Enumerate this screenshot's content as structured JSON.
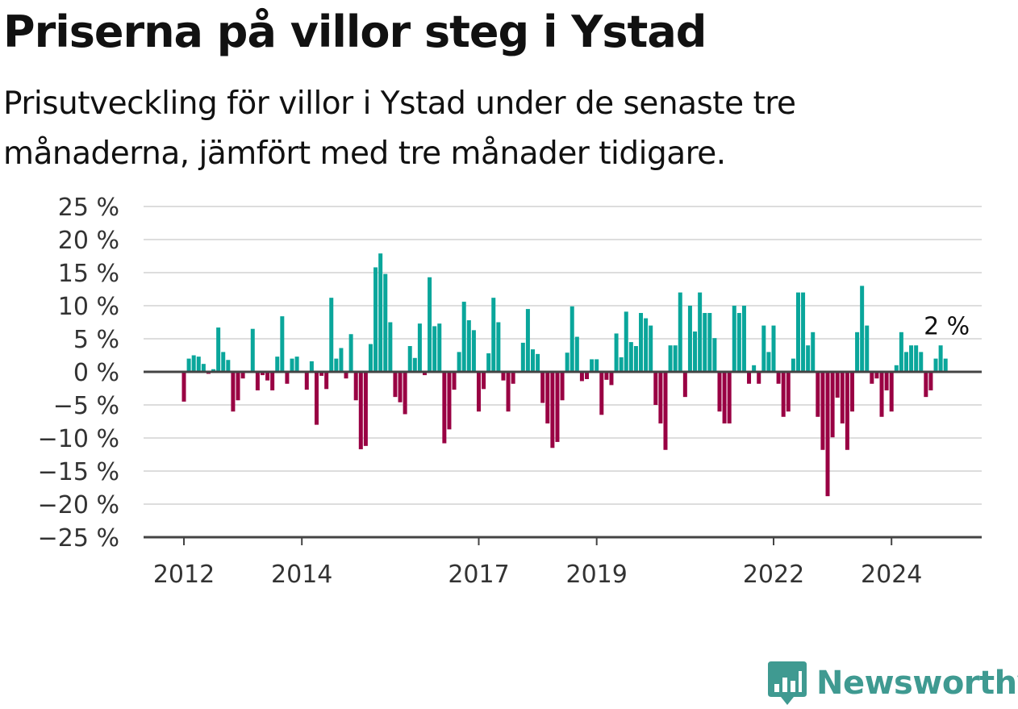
{
  "title": "Priserna på villor steg i Ystad",
  "subtitle": "Prisutveckling för villor i Ystad under de senaste tre månaderna, jämfört med tre månader tidigare.",
  "brand": {
    "name": "Newsworthy",
    "color": "#3f9a91",
    "icon": "bar-chart-badge-icon"
  },
  "colors": {
    "positive": "#0aa69b",
    "negative": "#990043",
    "zero_line": "#444444",
    "grid": "#dddddd"
  },
  "chart_data": {
    "type": "bar",
    "title": "Priserna på villor steg i Ystad",
    "xlabel": "",
    "ylabel": "",
    "ylim": [
      -25,
      25
    ],
    "yticks": [
      25,
      20,
      15,
      10,
      5,
      0,
      -5,
      -10,
      -15,
      -20,
      -25
    ],
    "ytick_labels": [
      "25 %",
      "20 %",
      "15 %",
      "10 %",
      "5 %",
      "0 %",
      "−5 %",
      "−10 %",
      "−15 %",
      "−20 %",
      "−25 %"
    ],
    "xticks": [
      2012,
      2014,
      2017,
      2019,
      2022,
      2024
    ],
    "xtick_labels": [
      "2012",
      "2014",
      "2017",
      "2019",
      "2022",
      "2024"
    ],
    "x_start": 2012,
    "months_per_bar": 1,
    "values": [
      -4.5,
      2,
      2.5,
      2.3,
      1.2,
      -0.3,
      0.4,
      6.7,
      3,
      1.8,
      -6,
      -4.3,
      -1,
      0,
      6.5,
      -2.8,
      -0.5,
      -1.3,
      -2.8,
      2.3,
      8.4,
      -1.8,
      2,
      2.3,
      0,
      -2.7,
      1.6,
      -8,
      -0.6,
      -2.6,
      11.2,
      2,
      3.6,
      -1,
      5.7,
      -4.3,
      -11.7,
      -11.2,
      4.2,
      15.8,
      17.9,
      14.8,
      7.5,
      -3.8,
      -4.6,
      -6.4,
      3.9,
      2.1,
      7.3,
      -0.5,
      14.3,
      6.9,
      7.3,
      -10.8,
      -8.7,
      -2.7,
      3,
      10.6,
      7.8,
      6.3,
      -6,
      -2.6,
      2.8,
      11.2,
      7.5,
      -1.3,
      -6,
      -1.8,
      0,
      4.4,
      9.5,
      3.4,
      2.7,
      -4.7,
      -7.8,
      -11.5,
      -10.6,
      -4.3,
      2.9,
      9.9,
      5.3,
      -1.4,
      -1.1,
      1.9,
      1.9,
      -6.5,
      -1.2,
      -2,
      5.8,
      2.2,
      9.1,
      4.5,
      3.9,
      8.9,
      8.1,
      7,
      -5,
      -7.8,
      -11.8,
      4,
      4,
      12,
      -3.8,
      10,
      6.1,
      12,
      8.9,
      8.9,
      5.1,
      -6,
      -7.8,
      -7.8,
      10,
      8.9,
      10,
      -1.8,
      1,
      -1.8,
      7,
      3,
      7,
      -1.8,
      -6.8,
      -6,
      2,
      12,
      12,
      4,
      6,
      -6.8,
      -11.8,
      -18.8,
      -9.9,
      -3.9,
      -7.8,
      -11.8,
      -6,
      6,
      13,
      7,
      -1.8,
      -1,
      -6.8,
      -2.8,
      -6,
      1,
      6,
      3,
      4,
      4,
      3,
      -3.8,
      -2.8,
      2,
      4,
      2
    ],
    "annotation": {
      "label": "2 %",
      "value": 2
    }
  }
}
